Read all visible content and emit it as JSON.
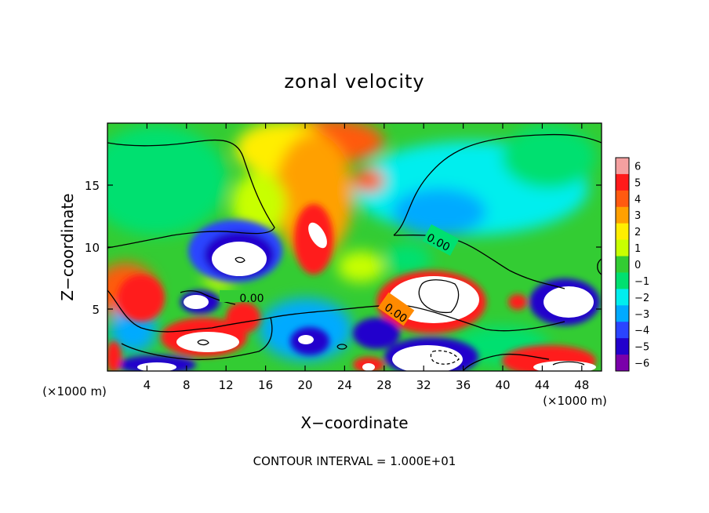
{
  "chart_data": {
    "type": "heatmap",
    "title": "zonal velocity",
    "xlabel": "X−coordinate",
    "ylabel": "Z−coordinate",
    "x_unit_left": "(×1000 m)",
    "x_unit_right": "(×1000 m)",
    "footer": "CONTOUR INTERVAL = 1.000E+01",
    "xlim": [
      0,
      50
    ],
    "ylim": [
      0,
      20
    ],
    "x_ticks": [
      4,
      8,
      12,
      16,
      20,
      24,
      28,
      32,
      36,
      40,
      44,
      48
    ],
    "y_ticks": [
      5,
      10,
      15
    ],
    "colorbar": {
      "levels": [
        6,
        5,
        4,
        3,
        2,
        1,
        0,
        -1,
        -2,
        -3,
        -4,
        -5,
        -6
      ],
      "labels": [
        "6",
        "5",
        "4",
        "3",
        "2",
        "1",
        "0",
        "−1",
        "−2",
        "−3",
        "−4",
        "−5",
        "−6"
      ],
      "colors": [
        "#f4a0a0",
        "#ff1a1a",
        "#ff5a10",
        "#ffa000",
        "#ffee00",
        "#c8ff00",
        "#33cc33",
        "#00e070",
        "#00eeee",
        "#00aaff",
        "#2a44ff",
        "#2200cc",
        "#7a00aa"
      ]
    },
    "contour_labels": [
      {
        "text": "0.00",
        "x": 14.6,
        "y": 5.9
      },
      {
        "text": "0.00",
        "x": 33.5,
        "y": 10.4
      },
      {
        "text": "0.00",
        "x": 29.2,
        "y": 4.7
      }
    ],
    "field_features": [
      {
        "x": 0,
        "y": 20,
        "value": 0
      },
      {
        "x": 3,
        "y": 12,
        "value": 0.3
      },
      {
        "x": 22,
        "y": 18.5,
        "value": 3.5
      },
      {
        "x": 16,
        "y": 18,
        "value": 1.5
      },
      {
        "x": 21,
        "y": 11,
        "value": 6
      },
      {
        "x": 13.5,
        "y": 9,
        "value": -6
      },
      {
        "x": 14,
        "y": 10.8,
        "value": -4.5
      },
      {
        "x": 33,
        "y": 6,
        "value": 6
      },
      {
        "x": 35,
        "y": 13,
        "value": -2.5
      },
      {
        "x": 44,
        "y": 14,
        "value": -2
      },
      {
        "x": 47,
        "y": 5.5,
        "value": -6
      },
      {
        "x": 10,
        "y": 2.4,
        "value": 6
      },
      {
        "x": 2,
        "y": 7,
        "value": 4
      },
      {
        "x": 8,
        "y": 6,
        "value": -5
      },
      {
        "x": 34,
        "y": 1,
        "value": -6
      },
      {
        "x": 46,
        "y": 0.5,
        "value": 6
      },
      {
        "x": 26,
        "y": 3,
        "value": -6
      },
      {
        "x": 26.5,
        "y": 14.5,
        "value": 4
      },
      {
        "x": 40,
        "y": 8,
        "value": 0
      },
      {
        "x": 22,
        "y": 4,
        "value": -1
      }
    ]
  }
}
